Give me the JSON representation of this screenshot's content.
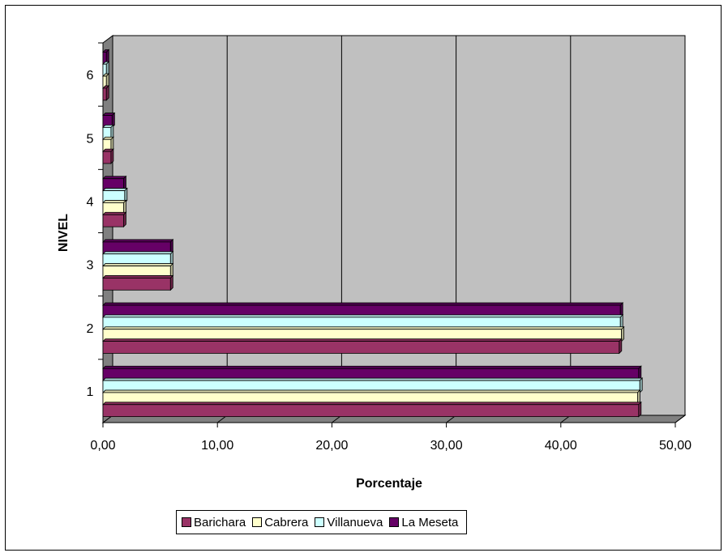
{
  "chart_data": {
    "type": "bar",
    "orientation": "horizontal",
    "three_d": true,
    "categories": [
      "1",
      "2",
      "3",
      "4",
      "5",
      "6"
    ],
    "series": [
      {
        "name": "Barichara",
        "color": "#993366",
        "values": [
          46.8,
          45.1,
          5.9,
          1.8,
          0.7,
          0.3
        ]
      },
      {
        "name": "Cabrera",
        "color": "#FFFFCC",
        "values": [
          46.7,
          45.3,
          5.9,
          1.8,
          0.7,
          0.3
        ]
      },
      {
        "name": "Villanueva",
        "color": "#CCFFFF",
        "values": [
          46.9,
          45.2,
          5.9,
          1.9,
          0.7,
          0.3
        ]
      },
      {
        "name": "La Meseta",
        "color": "#660066",
        "values": [
          46.8,
          45.2,
          5.9,
          1.8,
          0.8,
          0.3
        ]
      }
    ],
    "x_ticks": [
      "0,00",
      "10,00",
      "20,00",
      "30,00",
      "40,00",
      "50,00"
    ],
    "xlim": [
      0,
      50
    ],
    "xlabel": "Porcentaje",
    "ylabel": "NIVEL",
    "title": "",
    "grid": true,
    "legend_position": "bottom",
    "colors": {
      "plot_wall": "#C0C0C0",
      "floor": "#808080",
      "gridline": "#000000"
    }
  }
}
